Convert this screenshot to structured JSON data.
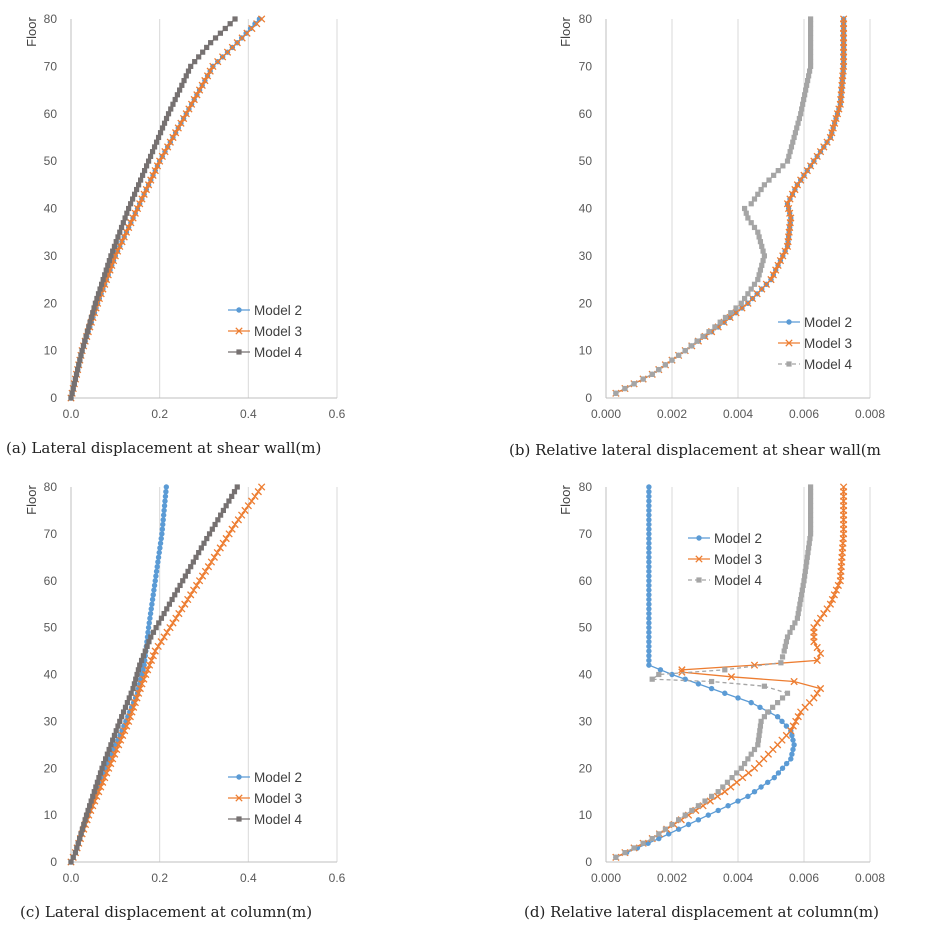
{
  "colors": {
    "model2": "#5b9bd5",
    "model3": "#ed7d31",
    "model4_dark": "#767171",
    "model4_light": "#a5a5a5",
    "grid": "#d9d9d9",
    "axis": "#bfbfbf"
  },
  "chart_data": [
    {
      "id": "a",
      "type": "line",
      "caption": "(a) Lateral displacement at shear wall(m)",
      "ylabel": "Floor",
      "xlim": [
        0,
        0.6
      ],
      "ylim": [
        0,
        80
      ],
      "xticks": [
        "0.0",
        "0.2",
        "0.4",
        "0.6"
      ],
      "yticks": [
        "0",
        "10",
        "20",
        "30",
        "40",
        "50",
        "60",
        "70",
        "80"
      ],
      "legend_position": "bottom-right",
      "series": [
        {
          "name": "Model 2",
          "marker": "circle",
          "color": "#5b9bd5",
          "line": "solid",
          "x": [
            0,
            0.005,
            0.025,
            0.06,
            0.1,
            0.15,
            0.2,
            0.26,
            0.32,
            0.375,
            0.425
          ],
          "y": [
            0,
            2,
            10,
            20,
            30,
            40,
            50,
            60,
            70,
            75,
            80
          ]
        },
        {
          "name": "Model 3",
          "marker": "x",
          "color": "#ed7d31",
          "line": "solid",
          "x": [
            0,
            0.005,
            0.025,
            0.06,
            0.1,
            0.15,
            0.2,
            0.26,
            0.32,
            0.375,
            0.43
          ],
          "y": [
            0,
            2,
            10,
            20,
            30,
            40,
            50,
            60,
            70,
            75,
            80
          ]
        },
        {
          "name": "Model 4",
          "marker": "square",
          "color": "#767171",
          "line": "solid",
          "x": [
            0,
            0.005,
            0.025,
            0.055,
            0.09,
            0.13,
            0.175,
            0.22,
            0.27,
            0.315,
            0.37
          ],
          "y": [
            0,
            2,
            10,
            20,
            30,
            40,
            50,
            60,
            70,
            75,
            80
          ]
        }
      ]
    },
    {
      "id": "b",
      "type": "line",
      "caption": "(b) Relative lateral displacement at shear wall(m",
      "ylabel": "Floor",
      "xlim": [
        0,
        0.008
      ],
      "ylim": [
        0,
        80
      ],
      "xticks": [
        "0.000",
        "0.002",
        "0.004",
        "0.006",
        "0.008"
      ],
      "yticks": [
        "0",
        "10",
        "20",
        "30",
        "40",
        "50",
        "60",
        "70",
        "80"
      ],
      "legend_position": "bottom-right",
      "series": [
        {
          "name": "Model 2",
          "marker": "circle",
          "color": "#5b9bd5",
          "line": "solid",
          "x": [
            0.0003,
            0.0014,
            0.0024,
            0.0034,
            0.0043,
            0.005,
            0.0055,
            0.0056,
            0.0055,
            0.0058,
            0.0063,
            0.0068,
            0.0071,
            0.0072,
            0.0072
          ],
          "y": [
            1,
            5,
            10,
            15,
            20,
            25,
            32,
            38,
            41,
            45,
            50,
            55,
            62,
            70,
            80
          ]
        },
        {
          "name": "Model 3",
          "marker": "x",
          "color": "#ed7d31",
          "line": "solid",
          "x": [
            0.0003,
            0.0014,
            0.0024,
            0.0034,
            0.0043,
            0.005,
            0.0055,
            0.0056,
            0.0055,
            0.0058,
            0.0063,
            0.0068,
            0.0071,
            0.0072,
            0.0072
          ],
          "y": [
            1,
            5,
            10,
            15,
            20,
            25,
            32,
            38,
            41,
            45,
            50,
            55,
            62,
            70,
            80
          ]
        },
        {
          "name": "Model 4",
          "marker": "square",
          "color": "#a5a5a5",
          "line": "dashed",
          "x": [
            0.0003,
            0.0014,
            0.0024,
            0.0033,
            0.0041,
            0.0046,
            0.0048,
            0.0046,
            0.0043,
            0.0042,
            0.0044,
            0.0048,
            0.0055,
            0.0059,
            0.0062,
            0.0062
          ],
          "y": [
            1,
            5,
            10,
            15,
            20,
            25,
            30,
            35,
            38,
            40,
            41,
            45,
            50,
            60,
            70,
            80
          ]
        }
      ]
    },
    {
      "id": "c",
      "type": "line",
      "caption": "(c) Lateral displacement at column(m)",
      "ylabel": "Floor",
      "xlim": [
        0,
        0.6
      ],
      "ylim": [
        0,
        80
      ],
      "xticks": [
        "0.0",
        "0.2",
        "0.4",
        "0.6"
      ],
      "yticks": [
        "0",
        "10",
        "20",
        "30",
        "40",
        "50",
        "60",
        "70",
        "80"
      ],
      "legend_position": "bottom-right",
      "series": [
        {
          "name": "Model 2",
          "marker": "circle",
          "color": "#5b9bd5",
          "line": "solid",
          "x": [
            0,
            0.01,
            0.03,
            0.07,
            0.115,
            0.15,
            0.165,
            0.175,
            0.19,
            0.205,
            0.215
          ],
          "y": [
            0,
            2,
            8,
            18,
            28,
            36,
            42,
            50,
            60,
            70,
            80
          ]
        },
        {
          "name": "Model 3",
          "marker": "x",
          "color": "#ed7d31",
          "line": "solid",
          "x": [
            0,
            0.01,
            0.04,
            0.085,
            0.13,
            0.16,
            0.19,
            0.25,
            0.31,
            0.37,
            0.43
          ],
          "y": [
            0,
            2,
            10,
            20,
            30,
            38,
            45,
            54,
            63,
            72,
            80
          ]
        },
        {
          "name": "Model 4",
          "marker": "square",
          "color": "#767171",
          "line": "solid",
          "x": [
            0,
            0.01,
            0.035,
            0.07,
            0.11,
            0.14,
            0.155,
            0.18,
            0.24,
            0.3,
            0.375
          ],
          "y": [
            0,
            2,
            10,
            20,
            30,
            37,
            42,
            48,
            58,
            68,
            80
          ]
        }
      ]
    },
    {
      "id": "d",
      "type": "line",
      "caption": "(d) Relative lateral displacement at column(m)",
      "ylabel": "Floor",
      "xlim": [
        0,
        0.008
      ],
      "ylim": [
        0,
        80
      ],
      "xticks": [
        "0.000",
        "0.002",
        "0.004",
        "0.006",
        "0.008"
      ],
      "yticks": [
        "0",
        "10",
        "20",
        "30",
        "40",
        "50",
        "60",
        "70",
        "80"
      ],
      "legend_position": "top-left",
      "series": [
        {
          "name": "Model 2",
          "marker": "circle",
          "color": "#5b9bd5",
          "line": "solid",
          "x": [
            0.0003,
            0.0016,
            0.0031,
            0.0043,
            0.0051,
            0.0056,
            0.0057,
            0.0056,
            0.0052,
            0.0044,
            0.0032,
            0.002,
            0.0013,
            0.0013,
            0.0013
          ],
          "y": [
            1,
            5,
            10,
            14,
            18,
            22,
            25,
            28,
            31,
            34,
            37,
            40,
            42,
            60,
            80
          ]
        },
        {
          "name": "Model 3",
          "marker": "x",
          "color": "#ed7d31",
          "line": "solid",
          "x": [
            0.0003,
            0.0014,
            0.0025,
            0.0036,
            0.0045,
            0.0052,
            0.0056,
            0.0059,
            0.0063,
            0.0065,
            0.0057,
            0.0038,
            0.0023,
            0.0023,
            0.0045,
            0.0064,
            0.0065,
            0.0063,
            0.0063,
            0.0068,
            0.0071,
            0.0072,
            0.0072
          ],
          "y": [
            1,
            5,
            10,
            15,
            20,
            25,
            28,
            32,
            35,
            37,
            38.5,
            39.5,
            40.5,
            41,
            42,
            43,
            44.5,
            47,
            50,
            55,
            60,
            70,
            80
          ]
        },
        {
          "name": "Model 4",
          "marker": "square",
          "color": "#a5a5a5",
          "line": "dashed",
          "x": [
            0.0003,
            0.0014,
            0.0024,
            0.0034,
            0.0041,
            0.0046,
            0.0047,
            0.0049,
            0.0055,
            0.0048,
            0.0032,
            0.0014,
            0.0016,
            0.0036,
            0.0053,
            0.0054,
            0.0055,
            0.0058,
            0.006,
            0.0062,
            0.0062
          ],
          "y": [
            1,
            5,
            10,
            15,
            20,
            25,
            30,
            32,
            36,
            37.5,
            38.5,
            39,
            40,
            41,
            42.5,
            45,
            48,
            52,
            60,
            70,
            80
          ]
        }
      ]
    }
  ]
}
